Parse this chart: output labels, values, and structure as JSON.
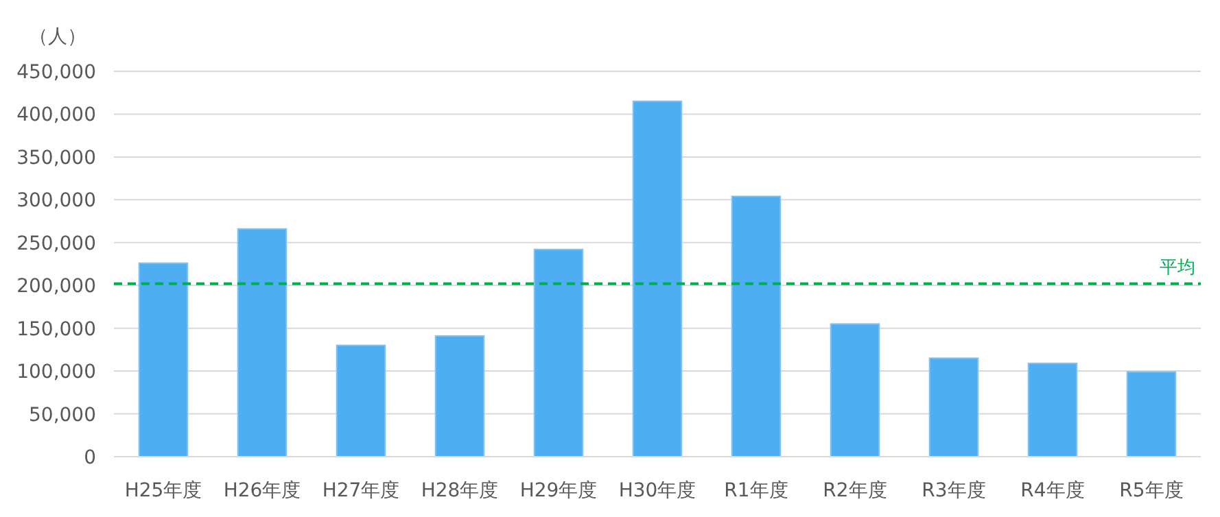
{
  "chart_data": {
    "type": "bar",
    "ylabel": "（人）",
    "categories": [
      "H25年度",
      "H26年度",
      "H27年度",
      "H28年度",
      "H29年度",
      "H30年度",
      "R1年度",
      "R2年度",
      "R3年度",
      "R4年度",
      "R5年度"
    ],
    "values": [
      226000,
      266000,
      130000,
      141000,
      242000,
      415000,
      304000,
      155000,
      115000,
      109000,
      99000
    ],
    "color": "#4fadf2",
    "ylim": [
      0,
      450000
    ],
    "yticks": [
      {
        "value": 0,
        "label": "0"
      },
      {
        "value": 50000,
        "label": "50,000"
      },
      {
        "value": 100000,
        "label": "100,000"
      },
      {
        "value": 150000,
        "label": "150,000"
      },
      {
        "value": 200000,
        "label": "200,000"
      },
      {
        "value": 250000,
        "label": "250,000"
      },
      {
        "value": 300000,
        "label": "300,000"
      },
      {
        "value": 350000,
        "label": "350,000"
      },
      {
        "value": 400000,
        "label": "400,000"
      },
      {
        "value": 450000,
        "label": "450,000"
      }
    ],
    "grid": "y",
    "ref_lines": [
      {
        "axis": "y",
        "value": 202000,
        "label": "平均",
        "color": "#00b050",
        "line_style": "dashed"
      }
    ]
  }
}
